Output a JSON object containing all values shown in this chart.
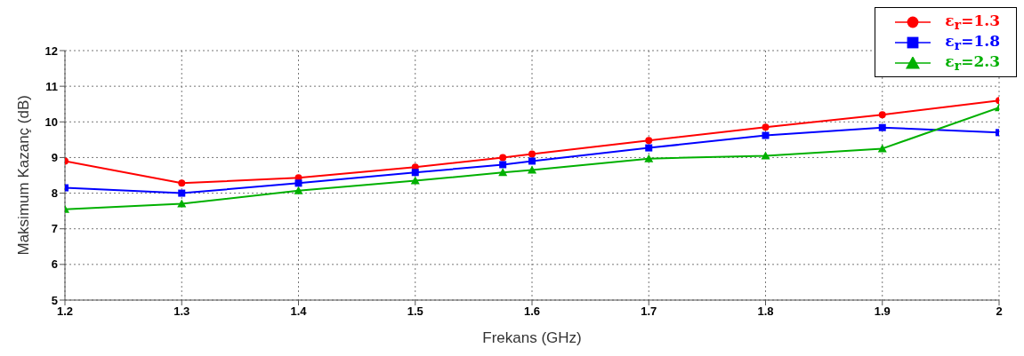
{
  "chart_data": {
    "type": "line",
    "xlabel": "Frekans (GHz)",
    "ylabel": "Maksimum Kazanç (dB)",
    "x": [
      1.2,
      1.3,
      1.4,
      1.5,
      1.575,
      1.6,
      1.7,
      1.8,
      1.9,
      2.0
    ],
    "series": [
      {
        "name": "ε$_{r}$=1.3",
        "color": "#ff0000",
        "marker": "circle",
        "values": [
          8.9,
          8.28,
          8.43,
          8.73,
          9.0,
          9.1,
          9.48,
          9.85,
          10.2,
          10.6
        ]
      },
      {
        "name": "ε$_{r}$=1.8",
        "color": "#0000ff",
        "marker": "square",
        "values": [
          8.15,
          8.0,
          8.28,
          8.58,
          8.8,
          8.9,
          9.27,
          9.62,
          9.84,
          9.7
        ]
      },
      {
        "name": "ε$_{r}$=2.3",
        "color": "#00b000",
        "marker": "triangle",
        "values": [
          7.55,
          7.7,
          8.07,
          8.35,
          8.58,
          8.65,
          8.97,
          9.05,
          9.25,
          10.4
        ]
      }
    ],
    "xlim": [
      1.2,
      2.0
    ],
    "xticks": [
      1.2,
      1.3,
      1.4,
      1.5,
      1.6,
      1.7,
      1.8,
      1.9,
      2
    ],
    "ylim": [
      5,
      12
    ],
    "yticks": [
      5,
      6,
      7,
      8,
      9,
      10,
      11,
      12
    ],
    "grid": true,
    "legend": "top right",
    "line_style": "solid"
  }
}
